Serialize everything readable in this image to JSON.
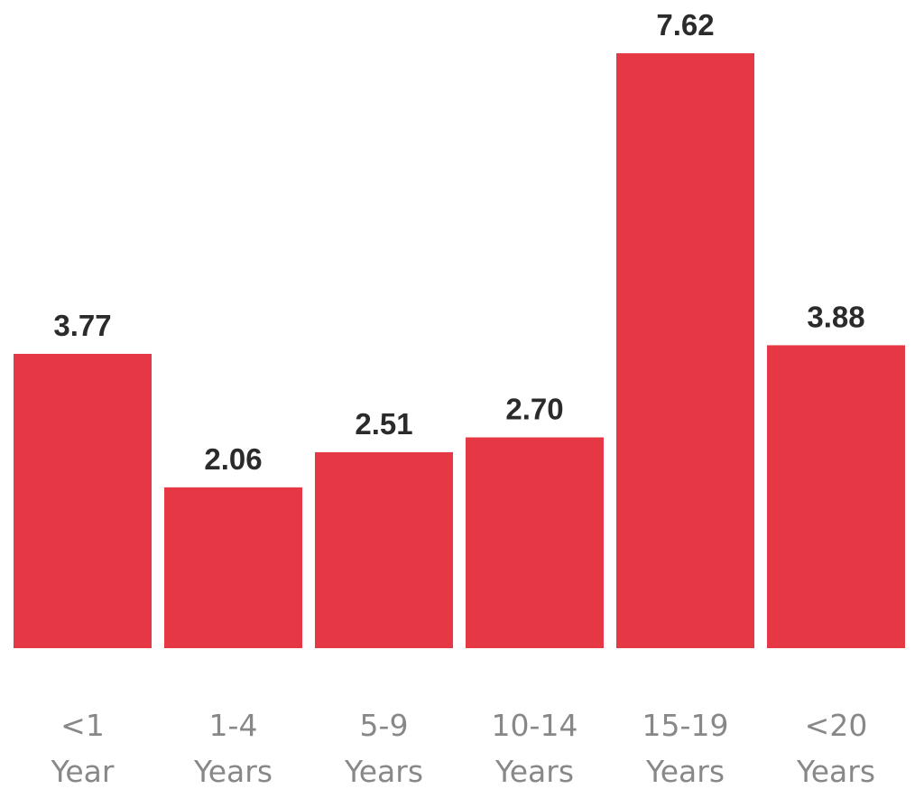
{
  "chart_data": {
    "type": "bar",
    "title": "",
    "xlabel": "",
    "ylabel": "",
    "categories": [
      [
        "<1",
        "Year"
      ],
      [
        "1-4",
        "Years"
      ],
      [
        "5-9",
        "Years"
      ],
      [
        "10-14",
        "Years"
      ],
      [
        "15-19",
        "Years"
      ],
      [
        "<20",
        "Years"
      ]
    ],
    "values": [
      3.77,
      2.06,
      2.51,
      2.7,
      7.62,
      3.88
    ],
    "value_labels": [
      "3.77",
      "2.06",
      "2.51",
      "2.70",
      "7.62",
      "3.88"
    ],
    "ylim": [
      0,
      7.62
    ],
    "grid": false,
    "legend": "none",
    "colors": {
      "bar": "#e63744",
      "value_label": "#2b2b2b",
      "category_label": "#888888",
      "background": "#ffffff"
    }
  }
}
